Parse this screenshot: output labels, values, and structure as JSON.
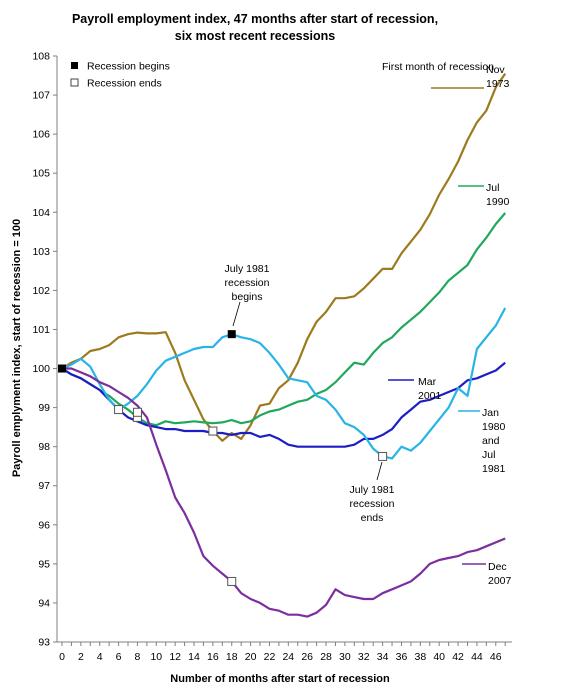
{
  "chart_data": {
    "type": "line",
    "title": "Payroll employment index, 47 months after start of recession,",
    "subtitle": "six most recent recessions",
    "xlabel": "Number of months after start of recession",
    "ylabel": "Payroll emplyment index, start of recession = 100",
    "xlim": [
      0,
      47
    ],
    "ylim": [
      93,
      108
    ],
    "xticks": [
      0,
      2,
      4,
      6,
      8,
      10,
      12,
      14,
      16,
      18,
      20,
      22,
      24,
      26,
      28,
      30,
      32,
      34,
      36,
      38,
      40,
      42,
      44,
      46
    ],
    "yticks": [
      93,
      94,
      95,
      96,
      97,
      98,
      99,
      100,
      101,
      102,
      103,
      104,
      105,
      106,
      107,
      108
    ],
    "grid": false,
    "legend": {
      "placement": "top-left",
      "items": [
        {
          "marker": "filled-square",
          "label": "Recession begins"
        },
        {
          "marker": "open-square",
          "label": "Recession ends"
        }
      ]
    },
    "first_month_header": "First month of recession",
    "series": [
      {
        "name_lines": [
          "Nov",
          "1973"
        ],
        "color": "#9c7a1d",
        "x": [
          0,
          1,
          2,
          3,
          4,
          5,
          6,
          7,
          8,
          9,
          10,
          11,
          12,
          13,
          14,
          15,
          16,
          17,
          18,
          19,
          20,
          21,
          22,
          23,
          24,
          25,
          26,
          27,
          28,
          29,
          30,
          31,
          32,
          33,
          34,
          35,
          36,
          37,
          38,
          39,
          40,
          41,
          42,
          43,
          44,
          45,
          46,
          47
        ],
        "values": [
          100,
          100.15,
          100.25,
          100.45,
          100.5,
          100.6,
          100.8,
          100.88,
          100.92,
          100.9,
          100.9,
          100.93,
          100.4,
          99.7,
          99.2,
          98.7,
          98.4,
          98.15,
          98.35,
          98.2,
          98.55,
          99.05,
          99.1,
          99.5,
          99.7,
          100.15,
          100.75,
          101.2,
          101.45,
          101.8,
          101.8,
          101.85,
          102.05,
          102.3,
          102.55,
          102.55,
          102.95,
          103.25,
          103.55,
          103.95,
          104.45,
          104.85,
          105.3,
          105.85,
          106.3,
          106.6,
          107.2,
          107.55
        ],
        "label_at": [
          47,
          106.9
        ]
      },
      {
        "name_lines": [
          "Jul",
          "1990"
        ],
        "color": "#21a85a",
        "x": [
          0,
          1,
          2,
          3,
          4,
          5,
          6,
          7,
          8,
          9,
          10,
          11,
          12,
          13,
          14,
          15,
          16,
          17,
          18,
          19,
          20,
          21,
          22,
          23,
          24,
          25,
          26,
          27,
          28,
          29,
          30,
          31,
          32,
          33,
          34,
          35,
          36,
          37,
          38,
          39,
          40,
          41,
          42,
          43,
          44,
          45,
          46,
          47
        ],
        "values": [
          100,
          99.85,
          99.75,
          99.6,
          99.45,
          99.3,
          99.1,
          98.95,
          98.75,
          98.6,
          98.55,
          98.65,
          98.6,
          98.62,
          98.65,
          98.62,
          98.6,
          98.62,
          98.68,
          98.6,
          98.65,
          98.8,
          98.9,
          98.95,
          99.05,
          99.15,
          99.2,
          99.35,
          99.45,
          99.65,
          99.9,
          100.15,
          100.1,
          100.4,
          100.65,
          100.8,
          101.05,
          101.25,
          101.45,
          101.7,
          101.95,
          102.25,
          102.45,
          102.65,
          103.05,
          103.35,
          103.7,
          103.98
        ],
        "label_at": [
          47,
          104.4
        ]
      },
      {
        "name_lines": [
          "Mar",
          "2001"
        ],
        "color": "#1d1dc4",
        "x": [
          0,
          1,
          2,
          3,
          4,
          5,
          6,
          7,
          8,
          9,
          10,
          11,
          12,
          13,
          14,
          15,
          16,
          17,
          18,
          19,
          20,
          21,
          22,
          23,
          24,
          25,
          26,
          27,
          28,
          29,
          30,
          31,
          32,
          33,
          34,
          35,
          36,
          37,
          38,
          39,
          40,
          41,
          42,
          43,
          44,
          45,
          46,
          47
        ],
        "values": [
          100,
          99.85,
          99.75,
          99.6,
          99.45,
          99.2,
          98.95,
          98.75,
          98.65,
          98.55,
          98.5,
          98.45,
          98.45,
          98.4,
          98.4,
          98.4,
          98.35,
          98.35,
          98.3,
          98.35,
          98.35,
          98.25,
          98.3,
          98.2,
          98.05,
          98.0,
          98.0,
          98.0,
          98.0,
          98.0,
          98.0,
          98.05,
          98.2,
          98.2,
          98.3,
          98.45,
          98.75,
          98.95,
          99.15,
          99.2,
          99.3,
          99.4,
          99.5,
          99.7,
          99.75,
          99.85,
          99.95,
          100.15
        ],
        "label_at": [
          38,
          99.7
        ]
      },
      {
        "name_lines": [
          "Jan",
          "1980",
          "and",
          "Jul",
          "1981"
        ],
        "color": "#28b4e6",
        "x": [
          0,
          1,
          2,
          3,
          4,
          5,
          6,
          7,
          8,
          9,
          10,
          11,
          12,
          13,
          14,
          15,
          16,
          17,
          18,
          19,
          20,
          21,
          22,
          23,
          24,
          25,
          26,
          27,
          28,
          29,
          30,
          31,
          32,
          33,
          34,
          35,
          36,
          37,
          38,
          39,
          40,
          41,
          42,
          43,
          44,
          45,
          46,
          47
        ],
        "values": [
          100,
          100.1,
          100.25,
          100.05,
          99.6,
          99.2,
          98.95,
          99.1,
          99.3,
          99.6,
          99.95,
          100.2,
          100.3,
          100.4,
          100.5,
          100.55,
          100.55,
          100.8,
          100.88,
          100.8,
          100.75,
          100.65,
          100.4,
          100.1,
          99.75,
          99.7,
          99.65,
          99.3,
          99.2,
          98.95,
          98.6,
          98.5,
          98.3,
          97.95,
          97.75,
          97.7,
          98.0,
          97.9,
          98.1,
          98.4,
          98.7,
          99.0,
          99.5,
          99.3,
          100.5,
          100.8,
          101.1,
          101.55
        ],
        "label_at": [
          42,
          99.3
        ]
      },
      {
        "name_lines": [
          "Dec",
          "2007"
        ],
        "color": "#7b2f9e",
        "x": [
          0,
          1,
          2,
          3,
          4,
          5,
          6,
          7,
          8,
          9,
          10,
          11,
          12,
          13,
          14,
          15,
          16,
          17,
          18,
          19,
          20,
          21,
          22,
          23,
          24,
          25,
          26,
          27,
          28,
          29,
          30,
          31,
          32,
          33,
          34,
          35,
          36,
          37,
          38,
          39,
          40,
          41,
          42,
          43,
          44,
          45,
          46,
          47
        ],
        "values": [
          100,
          100.0,
          99.9,
          99.8,
          99.65,
          99.55,
          99.4,
          99.25,
          99.05,
          98.75,
          98.05,
          97.4,
          96.7,
          96.3,
          95.8,
          95.2,
          94.95,
          94.75,
          94.55,
          94.25,
          94.1,
          94.0,
          93.85,
          93.8,
          93.7,
          93.7,
          93.65,
          93.75,
          93.95,
          94.35,
          94.2,
          94.15,
          94.1,
          94.1,
          94.25,
          94.35,
          94.45,
          94.55,
          94.75,
          95.0,
          95.1,
          95.15,
          95.2,
          95.3,
          95.35,
          95.45,
          95.55,
          95.65
        ],
        "label_at": [
          47,
          95.1
        ]
      }
    ],
    "markers": {
      "recession_begins": [
        [
          0,
          100
        ],
        [
          18,
          100.88
        ]
      ],
      "recession_ends": [
        [
          6,
          98.95
        ],
        [
          8,
          98.75
        ],
        [
          8,
          98.88
        ],
        [
          16,
          98.4
        ],
        [
          18,
          94.55
        ],
        [
          34,
          97.75
        ]
      ]
    },
    "annotations": [
      {
        "lines": [
          "July 1981",
          "recession",
          "begins"
        ],
        "at": [
          18,
          101.4
        ],
        "points_to": [
          18,
          100.9
        ],
        "side": "above"
      },
      {
        "lines": [
          "July 1981",
          "recession",
          "ends"
        ],
        "at": [
          34,
          97.2
        ],
        "points_to": [
          34,
          97.75
        ],
        "side": "below"
      }
    ]
  }
}
